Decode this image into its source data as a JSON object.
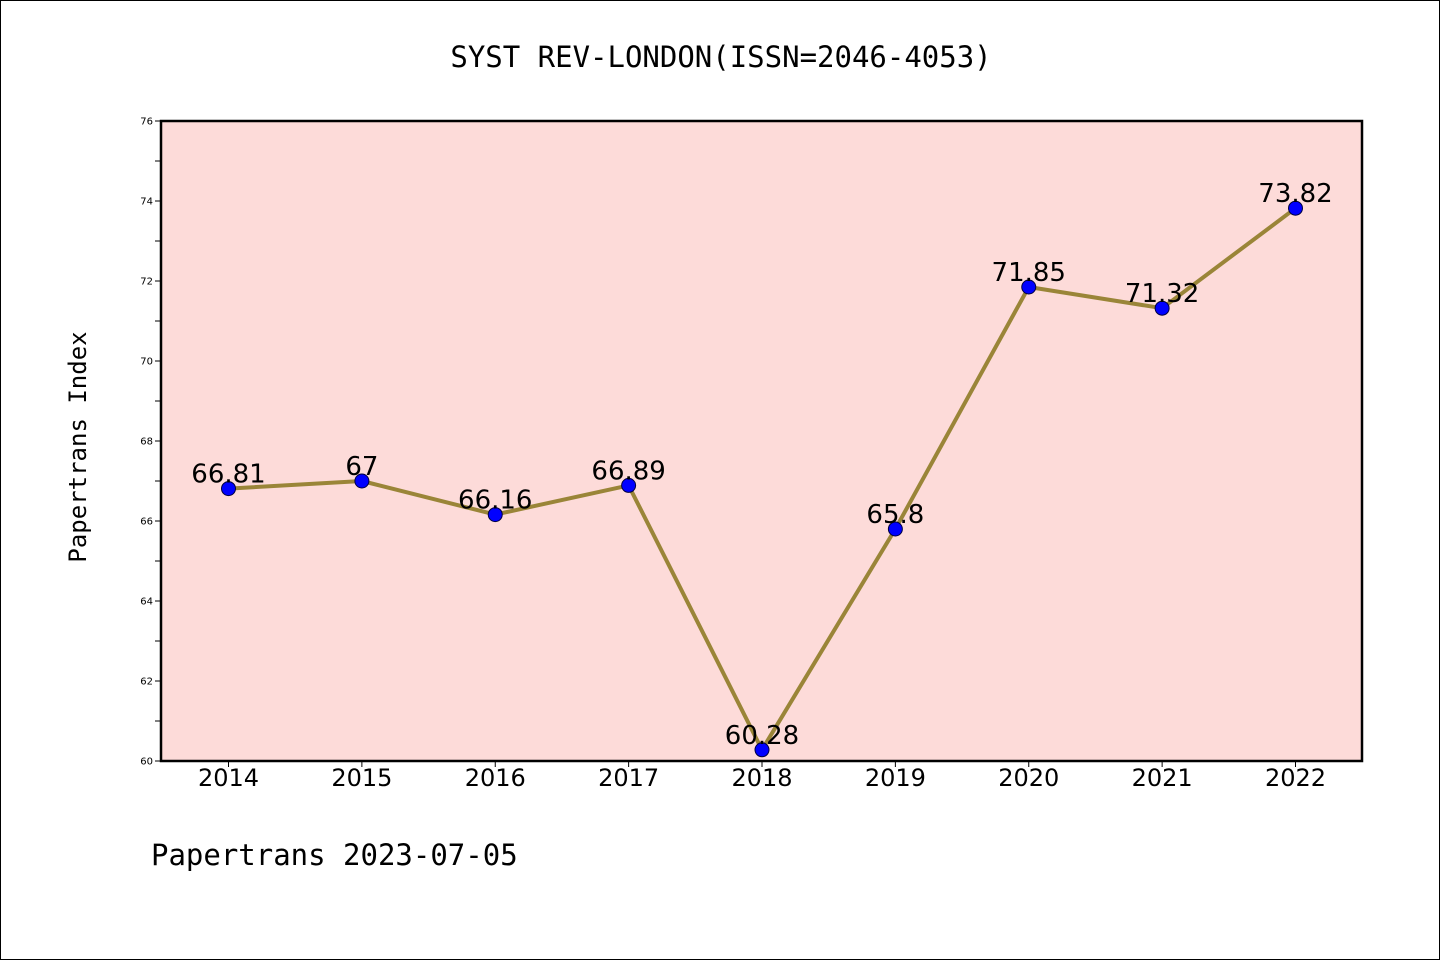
{
  "chart_data": {
    "type": "line",
    "title": "SYST REV-LONDON(ISSN=2046-4053)",
    "xlabel": "",
    "ylabel": "Papertrans Index",
    "footer": "Papertrans 2023-07-05",
    "categories": [
      "2014",
      "2015",
      "2016",
      "2017",
      "2018",
      "2019",
      "2020",
      "2021",
      "2022"
    ],
    "series": [
      {
        "values": [
          66.81,
          67,
          66.16,
          66.89,
          60.28,
          65.8,
          71.85,
          71.32,
          73.82
        ],
        "labels": [
          "66.81",
          "67",
          "66.16",
          "66.89",
          "60.28",
          "65.8",
          "71.85",
          "71.32",
          "73.82"
        ]
      }
    ],
    "ylim": [
      60,
      76
    ],
    "yticks": [
      "60",
      "62",
      "64",
      "66",
      "68",
      "70",
      "72",
      "74",
      "76"
    ],
    "grid": false,
    "legend": "none",
    "colors": {
      "plot_background": "#fddbd9",
      "line": "#9a8538",
      "marker": "#0000ff",
      "axes": "#000000"
    }
  }
}
